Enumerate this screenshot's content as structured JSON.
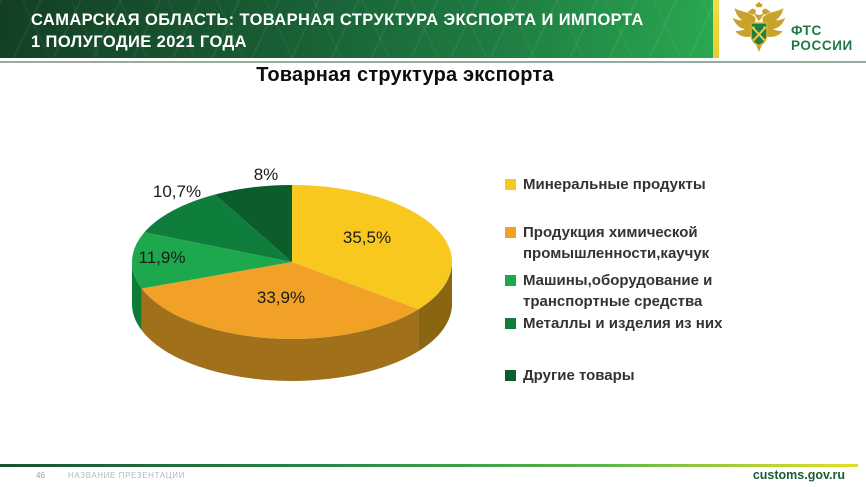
{
  "header": {
    "title_line1": "САМАРСКАЯ ОБЛАСТЬ: ТОВАРНАЯ СТРУКТУРА ЭКСПОРТА И ИМПОРТА",
    "title_line2": "1 ПОЛУГОДИЕ 2021 ГОДА",
    "accent_strip_color": "#ecd53a",
    "logo": {
      "org_line1": "ФТС",
      "org_line2": "РОССИИ",
      "text_color": "#1e7a44",
      "emblem": "fts-customs-double-eagle",
      "emblem_gold": "#c9a22b",
      "emblem_shield_green": "#1f8040"
    }
  },
  "chart_data": {
    "type": "pie",
    "style": "3d",
    "title": "Товарная структура экспорта",
    "start_angle": "12 o'clock, clockwise",
    "legend_position": "right",
    "unit": "%",
    "slices": [
      {
        "label": "Минеральные продукты",
        "value": 35.5,
        "display": "35,5%",
        "color": "#f9c81f",
        "side_color": "#8a6512"
      },
      {
        "label": "Продукция химической промышленности,каучук",
        "value": 33.9,
        "display": "33,9%",
        "color": "#f1a226",
        "side_color": "#a0701b"
      },
      {
        "label": "Машины,оборудование и транспортные средства",
        "value": 11.9,
        "display": "11,9%",
        "color": "#1ea84e",
        "side_color": "#0d7d36"
      },
      {
        "label": "Металлы и изделия из них",
        "value": 10.7,
        "display": "10,7%",
        "color": "#0f7e3d",
        "side_color": "#0a5f2c"
      },
      {
        "label": "Другие товары",
        "value": 8,
        "display": "8%",
        "color": "#0b5e2c",
        "side_color": "#07431f"
      }
    ]
  },
  "footer": {
    "page_number": "46",
    "presentation_name": "НАЗВАНИЕ ПРЕЗЕНТАЦИИ",
    "website": "customs.gov.ru"
  }
}
